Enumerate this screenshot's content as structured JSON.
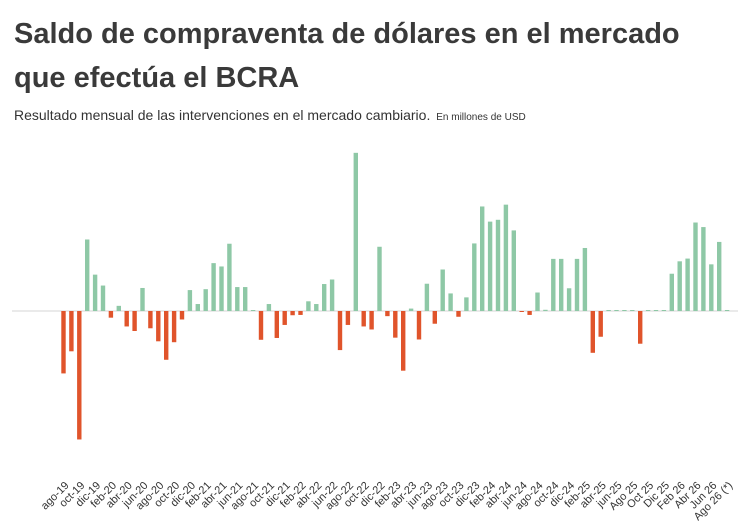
{
  "header": {
    "title": "Saldo de compraventa de dólares en el mercado que efectúa el BCRA",
    "subtitle": "Resultado mensual de las intervenciones en el mercado cambiario.",
    "unit_note": "En millones de USD"
  },
  "colors": {
    "positive": "#8ec8a6",
    "negative": "#e0542b",
    "baseline": "#d6d6d6"
  },
  "chart_data": {
    "type": "bar",
    "title": "Saldo de compraventa de dólares en el mercado que efectúa el BCRA",
    "subtitle": "Resultado mensual de las intervenciones en el mercado cambiario.",
    "unit": "En millones de USD",
    "xlabel": "",
    "ylabel": "",
    "grid": false,
    "legend": "none",
    "categories": [
      "ago-19",
      "sep-19",
      "oct-19",
      "nov-19",
      "dic-19",
      "ene-20",
      "feb-20",
      "mar-20",
      "abr-20",
      "may-20",
      "jun-20",
      "jul-20",
      "ago-20",
      "sep-20",
      "oct-20",
      "nov-20",
      "dic-20",
      "ene-21",
      "feb-21",
      "mar-21",
      "abr-21",
      "may-21",
      "jun-21",
      "jul-21",
      "ago-21",
      "sep-21",
      "oct-21",
      "nov-21",
      "dic-21",
      "ene-22",
      "feb-22",
      "mar-22",
      "abr-22",
      "may-22",
      "jun-22",
      "jul-22",
      "ago-22",
      "sep-22",
      "oct-22",
      "nov-22",
      "dic-22",
      "ene-23",
      "feb-23",
      "mar-23",
      "abr-23",
      "may-23",
      "jun-23",
      "jul-23",
      "ago-23",
      "sep-23",
      "oct-23",
      "nov-23",
      "dic-23",
      "ene-24",
      "feb-24",
      "mar-24",
      "abr-24",
      "may-24",
      "jun-24",
      "jul-24",
      "ago-24",
      "sep-24",
      "oct-24",
      "nov-24",
      "dic-24",
      "ene-25",
      "feb-25",
      "mar-25",
      "abr-25",
      "may-25",
      "jun-25",
      "jul-25",
      "Ago 25",
      "Sep 25",
      "Oct 25",
      "Nov 25",
      "Dic 25",
      "Ene 26",
      "Feb 26",
      "Mar 26",
      "Abr 26",
      "May 26",
      "Jun 26",
      "Jul 26",
      "Ago 26 (*)"
    ],
    "tick_labels": [
      "ago-19",
      "oct-19",
      "dic-19",
      "feb-20",
      "abr-20",
      "jun-20",
      "ago-20",
      "oct-20",
      "dic-20",
      "feb-21",
      "abr-21",
      "jun-21",
      "ago-21",
      "oct-21",
      "dic-21",
      "feb-22",
      "abr-22",
      "jun-22",
      "ago-22",
      "oct-22",
      "dic-22",
      "feb-23",
      "abr-23",
      "jun-23",
      "ago-23",
      "oct-23",
      "dic-23",
      "feb-24",
      "abr-24",
      "jun-24",
      "ago-24",
      "oct-24",
      "dic-24",
      "feb-25",
      "abr-25",
      "jun-25",
      "Ago 25",
      "Oct 25",
      "Dic 25",
      "Feb 26",
      "Abr 26",
      "Jun 26",
      "Ago 26 (*)"
    ],
    "values": [
      -2060,
      -1330,
      -4240,
      2360,
      1200,
      840,
      -220,
      170,
      -510,
      -660,
      760,
      -570,
      -1000,
      -1610,
      -1030,
      -280,
      690,
      230,
      720,
      1580,
      1470,
      2220,
      790,
      790,
      0,
      -950,
      230,
      -890,
      -460,
      -140,
      -130,
      320,
      230,
      890,
      1040,
      -1290,
      -460,
      5220,
      -510,
      -610,
      2120,
      -170,
      -880,
      -1970,
      80,
      -940,
      900,
      -420,
      1370,
      580,
      -190,
      450,
      2230,
      3450,
      2950,
      3010,
      3510,
      2660,
      -30,
      -130,
      610,
      40,
      1720,
      1720,
      750,
      1720,
      2080,
      -1380,
      -850,
      20,
      20,
      20,
      20,
      -1080,
      20,
      20,
      20,
      1230,
      1640,
      1730,
      2920,
      2770,
      1540,
      2280,
      30
    ],
    "ylim": [
      -4500,
      5300
    ]
  }
}
